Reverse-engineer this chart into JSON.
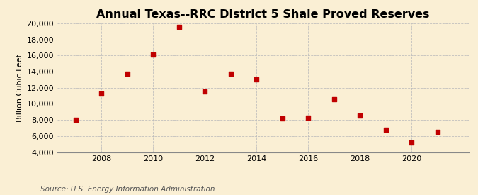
{
  "title": "Annual Texas--RRC District 5 Shale Proved Reserves",
  "ylabel": "Billion Cubic Feet",
  "source": "Source: U.S. Energy Information Administration",
  "years": [
    2007,
    2008,
    2009,
    2010,
    2011,
    2012,
    2013,
    2014,
    2015,
    2016,
    2017,
    2018,
    2019,
    2020,
    2021
  ],
  "values": [
    8000,
    11300,
    13700,
    16100,
    19600,
    11500,
    13700,
    13000,
    8200,
    8300,
    10600,
    8500,
    6800,
    5200,
    6500
  ],
  "marker_color": "#c00000",
  "marker_size": 5,
  "background_color": "#faefd4",
  "grid_color": "#bbbbbb",
  "ylim": [
    4000,
    20000
  ],
  "yticks": [
    4000,
    6000,
    8000,
    10000,
    12000,
    14000,
    16000,
    18000,
    20000
  ],
  "xticks": [
    2008,
    2010,
    2012,
    2014,
    2016,
    2018,
    2020
  ],
  "xlim": [
    2006.3,
    2022.2
  ],
  "title_fontsize": 11.5,
  "label_fontsize": 8,
  "tick_fontsize": 8,
  "source_fontsize": 7.5
}
